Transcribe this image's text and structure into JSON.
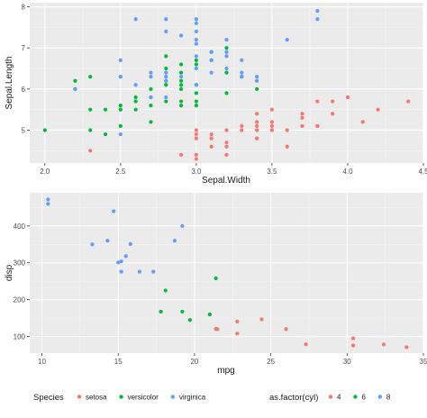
{
  "colors": {
    "panel_bg": "#EBEBEB",
    "grid_major": "#FFFFFF",
    "grid_minor": "#F5F5F5",
    "tick_text": "#4D4D4D",
    "title_text": "#1A1A1A",
    "red": "#F8766D",
    "green": "#00BA38",
    "blue": "#619CFF"
  },
  "chart_data": [
    {
      "type": "scatter",
      "xlabel": "Sepal.Width",
      "ylabel": "Sepal.Length",
      "xlim": [
        1.9,
        4.5
      ],
      "ylim": [
        4.2,
        8.1
      ],
      "xticks": [
        2.0,
        2.5,
        3.0,
        3.5,
        4.0,
        4.5
      ],
      "xtick_labels": [
        "2.0",
        "2.5",
        "3.0",
        "3.5",
        "4.0",
        "4.5"
      ],
      "yticks": [
        5,
        6,
        7,
        8
      ],
      "ytick_labels": [
        "5",
        "6",
        "7",
        "8"
      ],
      "grid": true,
      "color_by": "Species",
      "series": [
        {
          "name": "setosa",
          "color": "#F8766D",
          "points": [
            [
              2.3,
              4.5
            ],
            [
              2.9,
              4.4
            ],
            [
              3.0,
              4.3
            ],
            [
              3.0,
              4.4
            ],
            [
              3.0,
              4.8
            ],
            [
              3.0,
              4.9
            ],
            [
              3.0,
              5.0
            ],
            [
              3.1,
              4.6
            ],
            [
              3.1,
              4.8
            ],
            [
              3.1,
              4.9
            ],
            [
              3.2,
              4.4
            ],
            [
              3.2,
              4.6
            ],
            [
              3.2,
              4.7
            ],
            [
              3.2,
              5.0
            ],
            [
              3.3,
              5.0
            ],
            [
              3.3,
              5.1
            ],
            [
              3.4,
              4.8
            ],
            [
              3.4,
              5.0
            ],
            [
              3.4,
              5.1
            ],
            [
              3.4,
              5.2
            ],
            [
              3.4,
              5.4
            ],
            [
              3.5,
              5.0
            ],
            [
              3.5,
              5.1
            ],
            [
              3.5,
              5.2
            ],
            [
              3.5,
              5.5
            ],
            [
              3.6,
              4.6
            ],
            [
              3.6,
              5.0
            ],
            [
              3.7,
              5.3
            ],
            [
              3.7,
              5.4
            ],
            [
              3.7,
              5.1
            ],
            [
              3.8,
              5.1
            ],
            [
              3.8,
              5.7
            ],
            [
              3.9,
              5.4
            ],
            [
              4.0,
              5.8
            ],
            [
              4.1,
              5.2
            ],
            [
              4.2,
              5.5
            ],
            [
              4.4,
              5.7
            ],
            [
              3.9,
              5.7
            ],
            [
              3.8,
              5.1
            ]
          ]
        },
        {
          "name": "versicolor",
          "color": "#00BA38",
          "points": [
            [
              2.0,
              5.0
            ],
            [
              2.2,
              6.0
            ],
            [
              2.2,
              6.2
            ],
            [
              2.3,
              5.0
            ],
            [
              2.3,
              5.5
            ],
            [
              2.3,
              6.3
            ],
            [
              2.4,
              4.9
            ],
            [
              2.4,
              5.5
            ],
            [
              2.5,
              5.1
            ],
            [
              2.5,
              5.5
            ],
            [
              2.5,
              5.6
            ],
            [
              2.6,
              5.5
            ],
            [
              2.6,
              5.7
            ],
            [
              2.6,
              5.8
            ],
            [
              2.7,
              5.2
            ],
            [
              2.7,
              5.8
            ],
            [
              2.7,
              6.0
            ],
            [
              2.8,
              5.7
            ],
            [
              2.8,
              6.1
            ],
            [
              2.8,
              6.5
            ],
            [
              2.8,
              6.8
            ],
            [
              2.9,
              5.6
            ],
            [
              2.9,
              5.7
            ],
            [
              2.9,
              6.0
            ],
            [
              2.9,
              6.1
            ],
            [
              2.9,
              6.2
            ],
            [
              2.9,
              6.4
            ],
            [
              2.9,
              6.6
            ],
            [
              3.0,
              5.6
            ],
            [
              3.0,
              5.7
            ],
            [
              3.0,
              5.9
            ],
            [
              3.0,
              6.1
            ],
            [
              3.0,
              6.6
            ],
            [
              3.0,
              6.7
            ],
            [
              3.1,
              6.7
            ],
            [
              3.1,
              6.9
            ],
            [
              3.2,
              5.9
            ],
            [
              3.2,
              6.4
            ],
            [
              3.2,
              7.0
            ],
            [
              3.3,
              6.3
            ],
            [
              3.4,
              6.0
            ],
            [
              2.7,
              5.6
            ],
            [
              2.5,
              6.3
            ],
            [
              2.8,
              6.2
            ]
          ]
        },
        {
          "name": "virginica",
          "color": "#619CFF",
          "points": [
            [
              2.2,
              6.0
            ],
            [
              2.5,
              6.3
            ],
            [
              2.5,
              6.7
            ],
            [
              2.5,
              4.9
            ],
            [
              2.6,
              7.7
            ],
            [
              2.6,
              6.1
            ],
            [
              2.7,
              5.8
            ],
            [
              2.7,
              6.3
            ],
            [
              2.7,
              6.4
            ],
            [
              2.8,
              7.7
            ],
            [
              2.8,
              7.4
            ],
            [
              2.8,
              6.4
            ],
            [
              2.8,
              6.3
            ],
            [
              2.8,
              6.2
            ],
            [
              2.8,
              5.8
            ],
            [
              2.9,
              7.3
            ],
            [
              2.9,
              6.3
            ],
            [
              3.0,
              7.7
            ],
            [
              3.0,
              7.6
            ],
            [
              3.0,
              7.2
            ],
            [
              3.0,
              7.1
            ],
            [
              3.0,
              6.8
            ],
            [
              3.0,
              6.5
            ],
            [
              3.0,
              6.1
            ],
            [
              3.1,
              6.9
            ],
            [
              3.1,
              6.7
            ],
            [
              3.1,
              6.4
            ],
            [
              3.2,
              7.2
            ],
            [
              3.2,
              6.9
            ],
            [
              3.2,
              6.5
            ],
            [
              3.3,
              6.7
            ],
            [
              3.3,
              6.3
            ],
            [
              3.4,
              6.3
            ],
            [
              3.6,
              7.2
            ],
            [
              3.8,
              7.7
            ],
            [
              3.8,
              7.9
            ],
            [
              3.4,
              6.2
            ],
            [
              3.2,
              6.8
            ],
            [
              3.3,
              6.4
            ],
            [
              3.0,
              7.4
            ]
          ]
        }
      ]
    },
    {
      "type": "scatter",
      "xlabel": "mpg",
      "ylabel": "disp",
      "xlim": [
        9.2,
        35.0
      ],
      "ylim": [
        55,
        490
      ],
      "xticks": [
        10,
        15,
        20,
        25,
        30,
        35
      ],
      "xtick_labels": [
        "10",
        "15",
        "20",
        "25",
        "30",
        "35"
      ],
      "yticks": [
        100,
        200,
        300,
        400
      ],
      "ytick_labels": [
        "100",
        "200",
        "300",
        "400"
      ],
      "grid": true,
      "color_by": "as.factor(cyl)",
      "series": [
        {
          "name": "4",
          "color": "#F8766D",
          "points": [
            [
              22.8,
              108
            ],
            [
              24.4,
              146.7
            ],
            [
              22.8,
              140.8
            ],
            [
              32.4,
              78.7
            ],
            [
              30.4,
              75.7
            ],
            [
              33.9,
              71.1
            ],
            [
              21.5,
              120.1
            ],
            [
              27.3,
              79
            ],
            [
              26.0,
              120.3
            ],
            [
              30.4,
              95.1
            ],
            [
              21.4,
              121
            ]
          ]
        },
        {
          "name": "6",
          "color": "#00BA38",
          "points": [
            [
              21.0,
              160
            ],
            [
              21.0,
              160
            ],
            [
              21.4,
              258
            ],
            [
              18.1,
              225
            ],
            [
              19.2,
              167.6
            ],
            [
              17.8,
              167.6
            ],
            [
              19.7,
              145
            ]
          ]
        },
        {
          "name": "8",
          "color": "#619CFF",
          "points": [
            [
              18.7,
              360
            ],
            [
              14.3,
              360
            ],
            [
              16.4,
              275.8
            ],
            [
              17.3,
              275.8
            ],
            [
              15.2,
              275.8
            ],
            [
              10.4,
              472
            ],
            [
              10.4,
              460
            ],
            [
              14.7,
              440
            ],
            [
              15.5,
              318
            ],
            [
              15.2,
              304
            ],
            [
              13.3,
              350
            ],
            [
              19.2,
              400
            ],
            [
              15.8,
              351
            ],
            [
              15.0,
              301
            ]
          ]
        }
      ]
    }
  ],
  "legend": {
    "species": {
      "title": "Species",
      "items": [
        {
          "label": "setosa",
          "color": "#F8766D"
        },
        {
          "label": "versicolor",
          "color": "#00BA38"
        },
        {
          "label": "virginica",
          "color": "#619CFF"
        }
      ]
    },
    "cyl": {
      "title": "as.factor(cyl)",
      "items": [
        {
          "label": "4",
          "color": "#F8766D"
        },
        {
          "label": "6",
          "color": "#00BA38"
        },
        {
          "label": "8",
          "color": "#619CFF"
        }
      ]
    }
  }
}
